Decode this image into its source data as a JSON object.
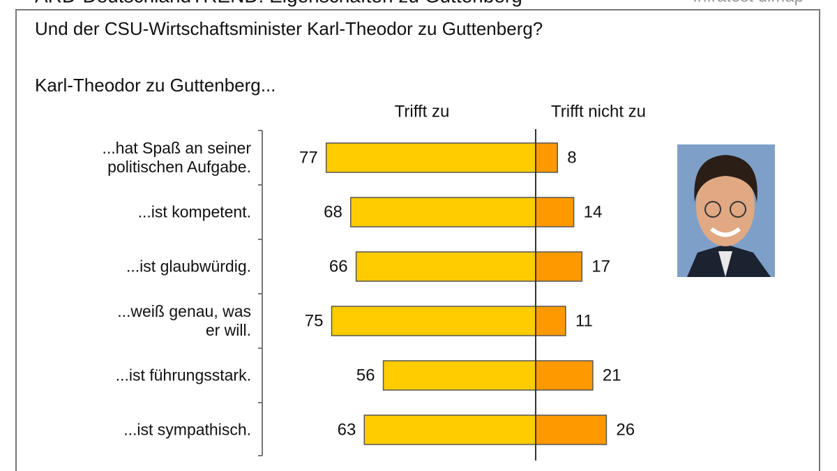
{
  "chart_data": {
    "type": "bar",
    "title": "ARD-DeutschlandTREND: Eigenschaften zu Guttenberg",
    "source": "Infratest dimap",
    "subtitle": "Und der CSU-Wirtschaftsminister Karl-Theodor zu Guttenberg?",
    "intro": "Karl-Theodor zu Guttenberg...",
    "categories": [
      "...hat Spaß an seiner\npolitischen Aufgabe.",
      "...ist kompetent.",
      "...ist glaubwürdig.",
      "...weiß genau, was\ner will.",
      "...ist führungsstark.",
      "...ist sympathisch."
    ],
    "series": [
      {
        "name": "Trifft zu",
        "color": "#ffcc00",
        "values": [
          77,
          68,
          66,
          75,
          56,
          63
        ]
      },
      {
        "name": "Trifft nicht zu",
        "color": "#ff9900",
        "values": [
          8,
          14,
          17,
          11,
          21,
          26
        ]
      }
    ]
  }
}
